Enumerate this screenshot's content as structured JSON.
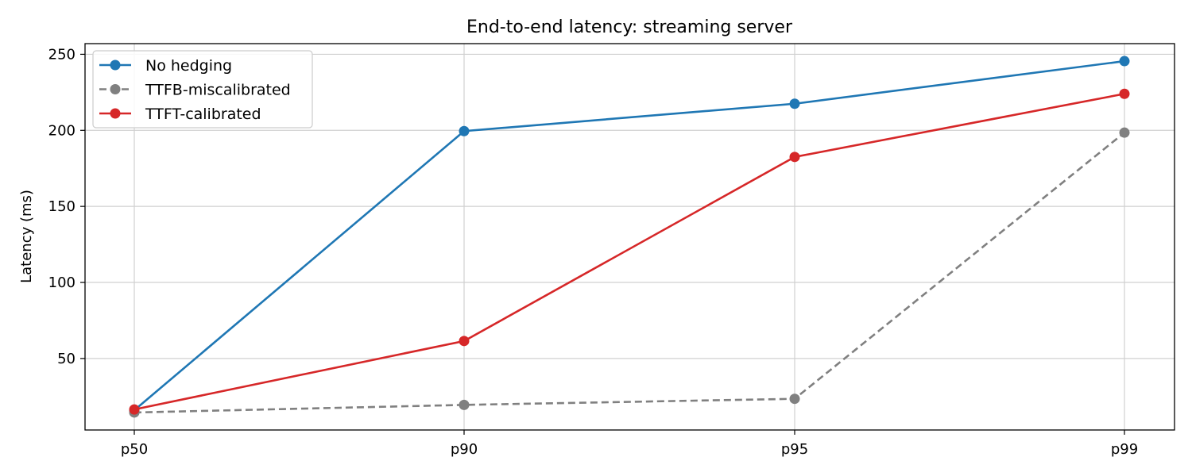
{
  "chart_data": {
    "type": "line",
    "title": "End-to-end latency: streaming server",
    "xlabel": "",
    "ylabel": "Latency (ms)",
    "categories": [
      "p50",
      "p90",
      "p95",
      "p99"
    ],
    "ylim": [
      3,
      257
    ],
    "yticks": [
      50,
      100,
      150,
      200,
      250
    ],
    "grid": true,
    "legend_position": "top-left",
    "series": [
      {
        "name": "No hedging",
        "color": "#1f77b4",
        "dashed": false,
        "values": [
          16,
          199.5,
          217.5,
          245.5
        ]
      },
      {
        "name": "TTFB-miscalibrated",
        "color": "#808080",
        "dashed": true,
        "values": [
          14.5,
          19.5,
          23.5,
          198.5
        ]
      },
      {
        "name": "TTFT-calibrated",
        "color": "#d62728",
        "dashed": false,
        "values": [
          16.5,
          61.5,
          182.5,
          224
        ]
      }
    ]
  }
}
